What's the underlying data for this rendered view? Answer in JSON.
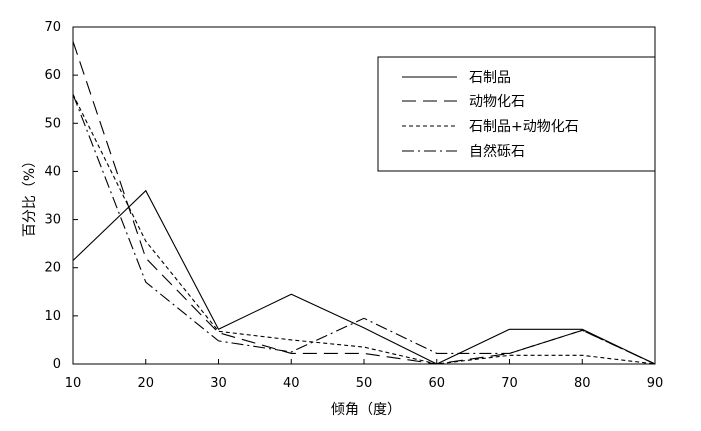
{
  "chart_data": {
    "type": "line",
    "x": [
      10,
      20,
      30,
      40,
      50,
      60,
      70,
      80,
      90
    ],
    "xlabel": "倾角（度）",
    "ylabel": "百分比（%）",
    "xlim": [
      10,
      90
    ],
    "ylim": [
      0,
      70
    ],
    "xticks": [
      "10",
      "20",
      "30",
      "40",
      "50",
      "60",
      "70",
      "80",
      "90"
    ],
    "yticks": [
      "0",
      "10",
      "20",
      "30",
      "40",
      "50",
      "60",
      "70"
    ],
    "grid": false,
    "legend_position": "top-right",
    "series": [
      {
        "name": "石制品",
        "dash": "solid",
        "values": [
          21.5,
          36,
          7.2,
          14.5,
          7.5,
          0,
          7.2,
          7.2,
          0
        ]
      },
      {
        "name": "动物化石",
        "dash": "long-dash",
        "values": [
          67,
          22,
          6.5,
          2.2,
          2.2,
          0,
          2.2,
          7,
          0
        ]
      },
      {
        "name": "石制品+动物化石",
        "dash": "short-dash",
        "values": [
          56,
          25.5,
          6.8,
          5,
          3.5,
          0,
          1.8,
          1.8,
          0
        ]
      },
      {
        "name": "自然砾石",
        "dash": "dash-dot",
        "values": [
          56,
          17,
          4.8,
          2.5,
          9.5,
          2.2,
          2.2,
          7,
          0
        ]
      }
    ]
  }
}
